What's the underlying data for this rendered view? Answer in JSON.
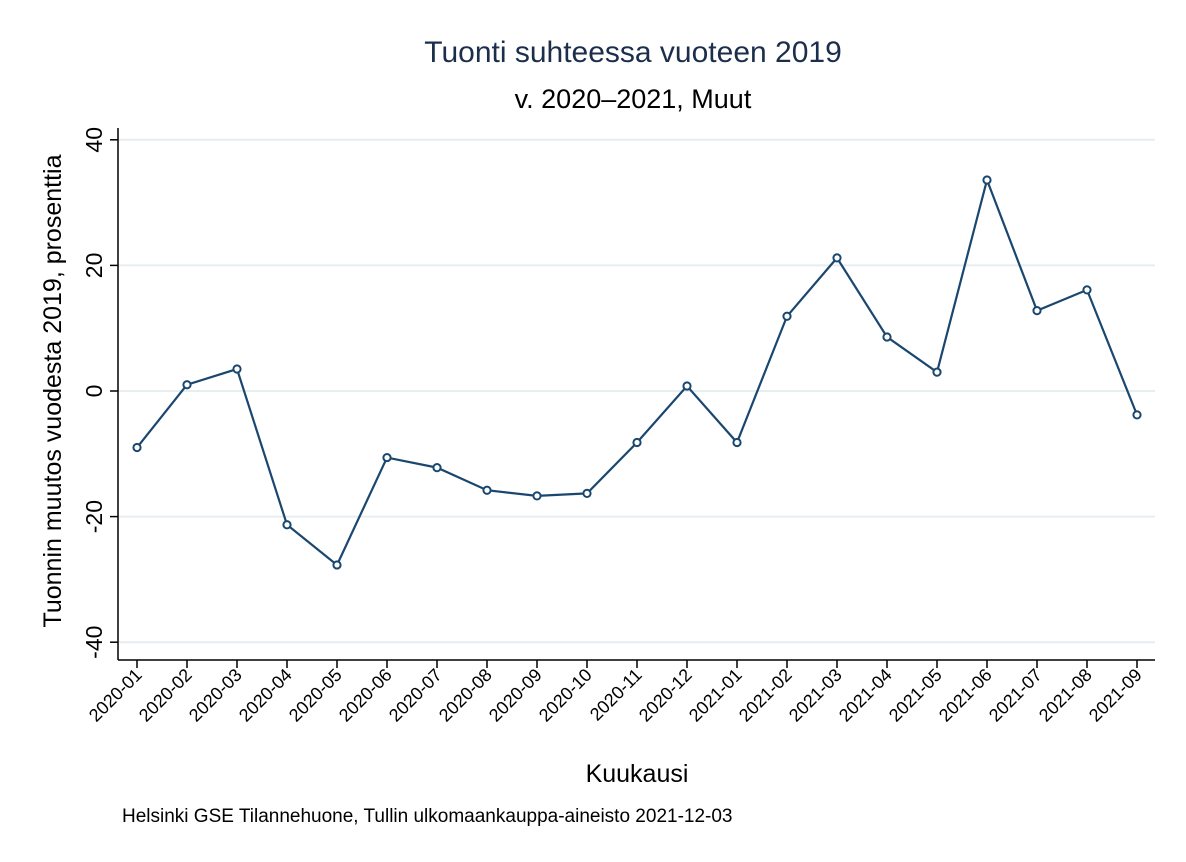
{
  "chart_data": {
    "type": "line",
    "title": "Tuonti suhteessa vuoteen 2019",
    "subtitle": "v. 2020–2021, Muut",
    "xlabel": "Kuukausi",
    "ylabel": "Tuonnin muutos vuodesta 2019, prosenttia",
    "note": "Helsinki GSE Tilannehuone, Tullin ulkomaankauppa-aineisto 2021-12-03",
    "ylim": [
      -40,
      40
    ],
    "yticks": [
      40,
      20,
      0,
      -20,
      -40
    ],
    "grid": true,
    "categories": [
      "2020-01",
      "2020-02",
      "2020-03",
      "2020-04",
      "2020-05",
      "2020-06",
      "2020-07",
      "2020-08",
      "2020-09",
      "2020-10",
      "2020-11",
      "2020-12",
      "2021-01",
      "2021-02",
      "2021-03",
      "2021-04",
      "2021-05",
      "2021-06",
      "2021-07",
      "2021-08",
      "2021-09"
    ],
    "series": [
      {
        "color": "#1a476f",
        "values": [
          -9.0,
          1.0,
          3.5,
          -21.3,
          -27.7,
          -10.6,
          -12.2,
          -15.8,
          -16.7,
          -16.3,
          -8.2,
          0.8,
          -8.2,
          11.9,
          21.2,
          8.6,
          3.0,
          33.6,
          12.8,
          16.1,
          -3.8
        ]
      }
    ],
    "colors": {
      "title": "#1b2e4b",
      "grid": "#e6eef0",
      "series": "#1a476f"
    }
  }
}
